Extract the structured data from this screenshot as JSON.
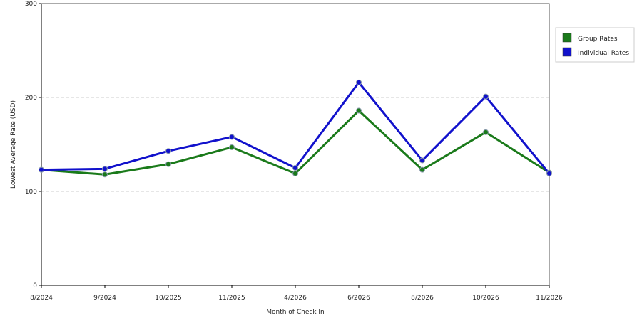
{
  "chart_data": {
    "type": "line",
    "title": "",
    "xlabel": "Month of Check In",
    "ylabel": "Lowest Average Rate (USD)",
    "categories": [
      "8/2024",
      "9/2024",
      "10/2025",
      "11/2025",
      "4/2026",
      "6/2026",
      "8/2026",
      "10/2026",
      "11/2026"
    ],
    "series": [
      {
        "name": "Group Rates",
        "color": "#1a7a1a",
        "values": [
          123,
          118,
          129,
          147,
          119,
          186,
          123,
          163,
          120
        ]
      },
      {
        "name": "Individual Rates",
        "color": "#1111cc",
        "values": [
          123,
          124,
          143,
          158,
          125,
          216,
          133,
          201,
          119
        ]
      }
    ],
    "ylim": [
      0,
      300
    ],
    "yticks": [
      0,
      100,
      200,
      300
    ],
    "grid": "horizontal dashed",
    "legend_position": "right"
  }
}
